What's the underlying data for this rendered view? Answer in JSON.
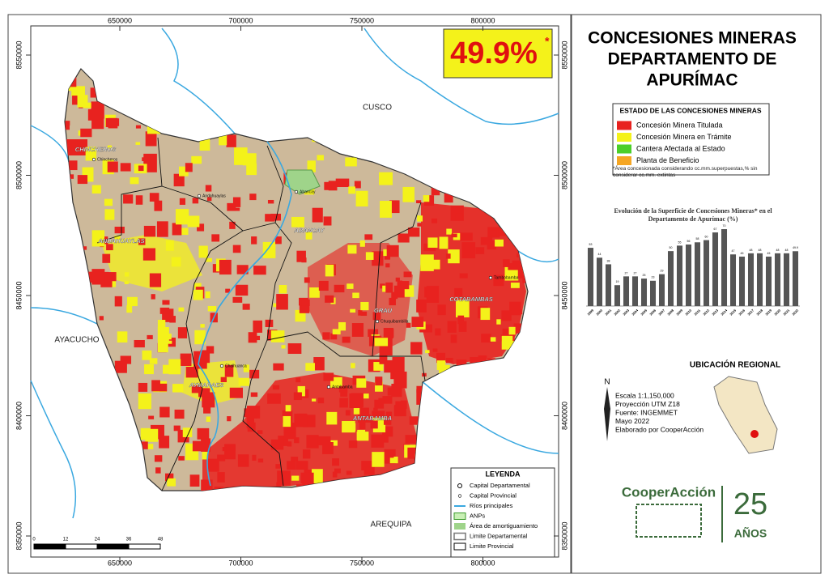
{
  "map": {
    "percentage": "49.9%",
    "asterisk": "*",
    "regions": [
      "CUSCO",
      "AYACUCHO",
      "AREQUIPA"
    ],
    "provinces": [
      {
        "name": "CHINCHEROS",
        "capital": "Chincheros"
      },
      {
        "name": "ANDAHUAYLAS",
        "capital": "Andahuaylas"
      },
      {
        "name": "ABANCAY",
        "capital": "Abancay"
      },
      {
        "name": "GRAU",
        "capital": "Chuquibambilla"
      },
      {
        "name": "COTABAMBAS",
        "capital": "Tambobamba"
      },
      {
        "name": "AYMARAES",
        "capital": "Chalhuanca"
      },
      {
        "name": "ANTABAMBA",
        "capital": "Antabamba"
      }
    ],
    "xticks": [
      650000,
      700000,
      750000,
      800000
    ],
    "yticks": [
      8550000,
      8500000,
      8450000,
      8400000,
      8350000
    ],
    "scale_ticks": [
      0,
      12,
      24,
      36,
      48
    ],
    "legend": {
      "title": "LEYENDA",
      "items": [
        "Capital Departamental",
        "Capital Provincial",
        "Ríos principales",
        "ANPs",
        "Área de amortiguamiento",
        "Limite Departamental",
        "Limite Provincial"
      ]
    }
  },
  "header": {
    "title_lines": [
      "CONCESIONES MINERAS",
      "DEPARTAMENTO DE",
      "APURÍMAC"
    ]
  },
  "status": {
    "title": "ESTADO DE LAS CONCESIONES MINERAS",
    "items": [
      {
        "label": "Concesión Minera Titulada",
        "color": "#e8221f"
      },
      {
        "label": "Concesión Minera en Trámite",
        "color": "#f4f21a"
      },
      {
        "label": "Cantera Afectada al Estado",
        "color": "#4ccf2a"
      },
      {
        "label": "Planta de Beneficio",
        "color": "#f5a623"
      }
    ],
    "note": "*Área concesionada considerando cc.mm.superpuestas,% sin considerar cc.mm. extintas"
  },
  "chart_data": {
    "type": "bar",
    "title": "Evolución de la Superficie de Concesiones Mineras* en el Departamento de Apurímac (%)",
    "color": "#555555",
    "categories": [
      "1999",
      "2000",
      "2001",
      "2002",
      "2003",
      "2004",
      "2005",
      "2006",
      "2007",
      "2008",
      "2009",
      "2010",
      "2011",
      "2012",
      "2013",
      "2014",
      "2015",
      "2016",
      "2017",
      "2018",
      "2019",
      "2020",
      "2021",
      "2022"
    ],
    "values": [
      53,
      44,
      38,
      19,
      27,
      27,
      25,
      23,
      29,
      50,
      55,
      56,
      58,
      60,
      67,
      70,
      47,
      45,
      48,
      48,
      45,
      48,
      48,
      49.9
    ]
  },
  "location": {
    "title": "UBICACIÓN REGIONAL",
    "north": "N",
    "info": [
      "Escala 1:1,150,000",
      "Proyección UTM Z18",
      "Fuente: INGEMMET",
      "Mayo 2022",
      "Elaborado por CooperAcción"
    ]
  },
  "logo": {
    "name": "CooperAcción",
    "number": "25",
    "years": "AÑOS"
  }
}
